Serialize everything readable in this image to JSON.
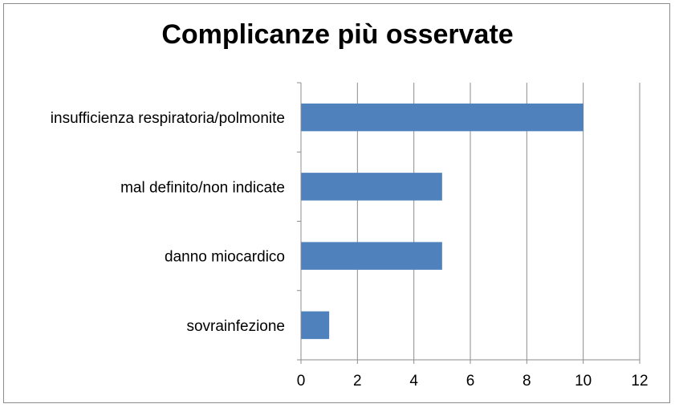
{
  "chart_data": {
    "type": "bar",
    "orientation": "horizontal",
    "title": "Complicanze più osservate",
    "categories": [
      "insufficienza respiratoria/polmonite",
      "mal definito/non indicate",
      "danno miocardico",
      "sovrainfezione"
    ],
    "values": [
      10,
      5,
      5,
      1
    ],
    "xlim": [
      0,
      12
    ],
    "xticks": [
      "0",
      "2",
      "4",
      "6",
      "8",
      "10",
      "12"
    ],
    "xlabel": "",
    "ylabel": "",
    "grid": "vertical",
    "legend": "none",
    "bar_color": "#4f81bd"
  }
}
